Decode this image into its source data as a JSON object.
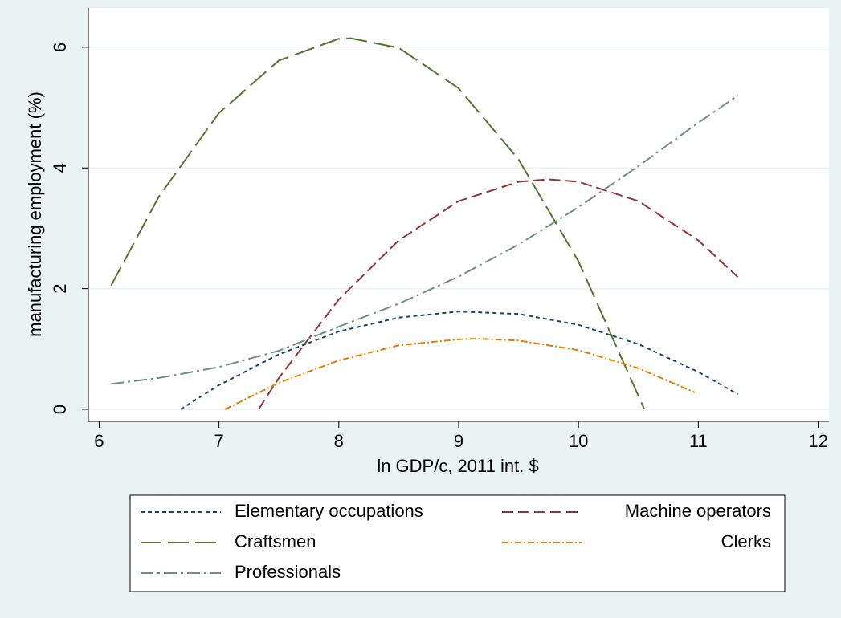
{
  "chart_data": {
    "type": "line",
    "xlabel": "ln GDP/c, 2011 int. $",
    "ylabel": "manufacturing employment (%)",
    "xlim": [
      5.91,
      12.09
    ],
    "ylim": [
      -0.2,
      6.65
    ],
    "xticks": [
      6,
      7,
      8,
      9,
      10,
      11,
      12
    ],
    "yticks": [
      0,
      2,
      4,
      6
    ],
    "grid": true,
    "series": [
      {
        "name": "Elementary occupations",
        "color": "#1a476f",
        "x": [
          6.68,
          7,
          7.5,
          8,
          8.5,
          9,
          9.5,
          10,
          10.5,
          11,
          11.33
        ],
        "values": [
          0,
          0.4,
          0.91,
          1.29,
          1.52,
          1.62,
          1.58,
          1.4,
          1.08,
          0.62,
          0.25
        ]
      },
      {
        "name": "Machine operators",
        "color": "#90353b",
        "x": [
          7.33,
          7.5,
          8,
          8.5,
          9,
          9.5,
          9.75,
          10,
          10.5,
          11,
          11.33
        ],
        "values": [
          0,
          0.52,
          1.82,
          2.8,
          3.45,
          3.77,
          3.81,
          3.77,
          3.45,
          2.8,
          2.19
        ]
      },
      {
        "name": "Craftsmen",
        "color": "#55752f",
        "x": [
          6.1,
          6.5,
          7,
          7.5,
          8,
          8.1,
          8.5,
          9,
          9.5,
          10,
          10.55
        ],
        "values": [
          2.05,
          3.53,
          4.91,
          5.78,
          6.14,
          6.15,
          5.99,
          5.32,
          4.14,
          2.45,
          0
        ]
      },
      {
        "name": "Clerks",
        "color": "#e37e00",
        "x": [
          7.05,
          7.5,
          8,
          8.5,
          9,
          9.15,
          9.5,
          10,
          10.5,
          10.97
        ],
        "values": [
          0,
          0.44,
          0.81,
          1.06,
          1.16,
          1.17,
          1.14,
          0.98,
          0.68,
          0.28
        ]
      },
      {
        "name": "Professionals",
        "color": "#6e8e84",
        "x": [
          6.1,
          6.5,
          7,
          7.5,
          8,
          8.5,
          9,
          9.5,
          10,
          10.5,
          11,
          11.33
        ],
        "values": [
          0.42,
          0.52,
          0.7,
          0.97,
          1.37,
          1.75,
          2.2,
          2.73,
          3.35,
          4.03,
          4.75,
          5.2
        ]
      }
    ]
  }
}
